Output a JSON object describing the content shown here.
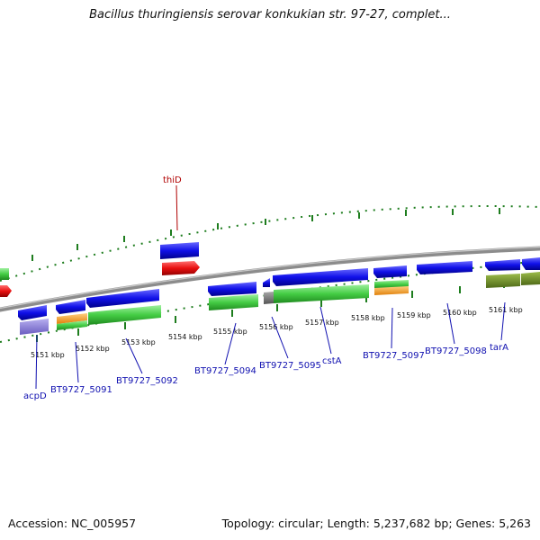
{
  "title": "Bacillus thuringiensis serovar konkukian str. 97-27, complet...",
  "footer": {
    "accession": "Accession: NC_005957",
    "topology": "Topology: circular; Length: 5,237,682 bp; Genes: 5,263"
  },
  "colors": {
    "forward_gene": "#1010e8",
    "reverse_gene": "#e81010",
    "cds_green": "#44cc44",
    "rna_orange": "#f59a1c",
    "purple": "#8a7fd6",
    "olive": "#6f8f2a",
    "backbone": "#8c8c8c",
    "tick": "#1e7d1e",
    "label_blue": "#1010b0",
    "label_red": "#b00000"
  },
  "kbp_labels": [
    "5151 kbp",
    "5152 kbp",
    "5153 kbp",
    "5154 kbp",
    "5155 kbp",
    "5156 kbp",
    "5157 kbp",
    "5158 kbp",
    "5159 kbp",
    "5160 kbp",
    "5161 kbp"
  ],
  "gene_labels": [
    "thiD",
    "acpD",
    "BT9727_5091",
    "BT9727_5092",
    "BT9727_5094",
    "BT9727_5095",
    "cstA",
    "BT9727_5097",
    "BT9727_5098",
    "tarA"
  ]
}
